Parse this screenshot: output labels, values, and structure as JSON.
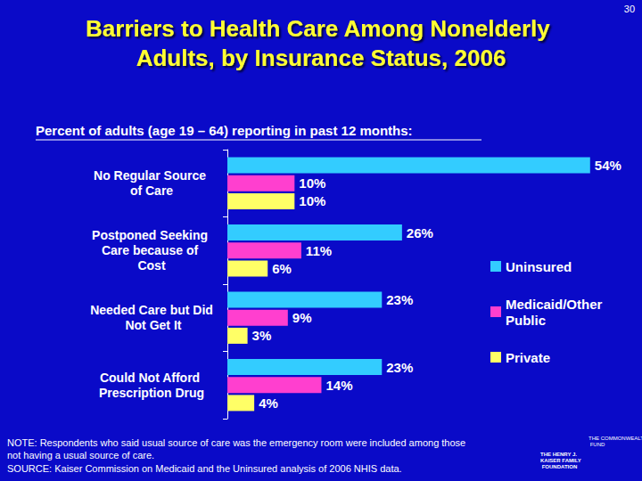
{
  "chart_data": {
    "type": "bar",
    "title": "Barriers to Health Care Among Nonelderly Adults, by Insurance Status, 2006",
    "subtitle": "Percent of adults (age 19 – 64) reporting in past 12 months:",
    "page_number": "30",
    "orientation": "horizontal",
    "categories": [
      "No Regular Source of Care",
      "Postponed Seeking Care because of Cost",
      "Needed Care but Did Not Get It",
      "Could Not Afford Prescription Drug"
    ],
    "series": [
      {
        "name": "Uninsured",
        "color": "#33CCFF",
        "values": [
          54,
          26,
          23,
          23
        ],
        "value_labels": [
          "54%",
          "26%",
          "23%",
          "23%"
        ]
      },
      {
        "name": "Medicaid/Other Public",
        "color": "#FF3FCF",
        "values": [
          10,
          11,
          9,
          14
        ],
        "value_labels": [
          "10%",
          "11%",
          "9%",
          "14%"
        ]
      },
      {
        "name": "Private",
        "color": "#FFFF66",
        "values": [
          10,
          6,
          3,
          4
        ],
        "value_labels": [
          "10%",
          "6%",
          "3%",
          "4%"
        ]
      }
    ],
    "xlim": [
      0,
      60
    ],
    "data_labels": true,
    "tick_labels": "y",
    "grid": false,
    "legend": "right",
    "note": "NOTE: Respondents who said usual source of care was the emergency room were included among those not having a usual source of care.",
    "source": "SOURCE: Kaiser Commission on Medicaid and the Uninsured analysis of 2006 NHIS data.",
    "logos": [
      "THE HENRY J. KAISER FAMILY FOUNDATION",
      "THE COMMONWEALTH FUND"
    ]
  }
}
